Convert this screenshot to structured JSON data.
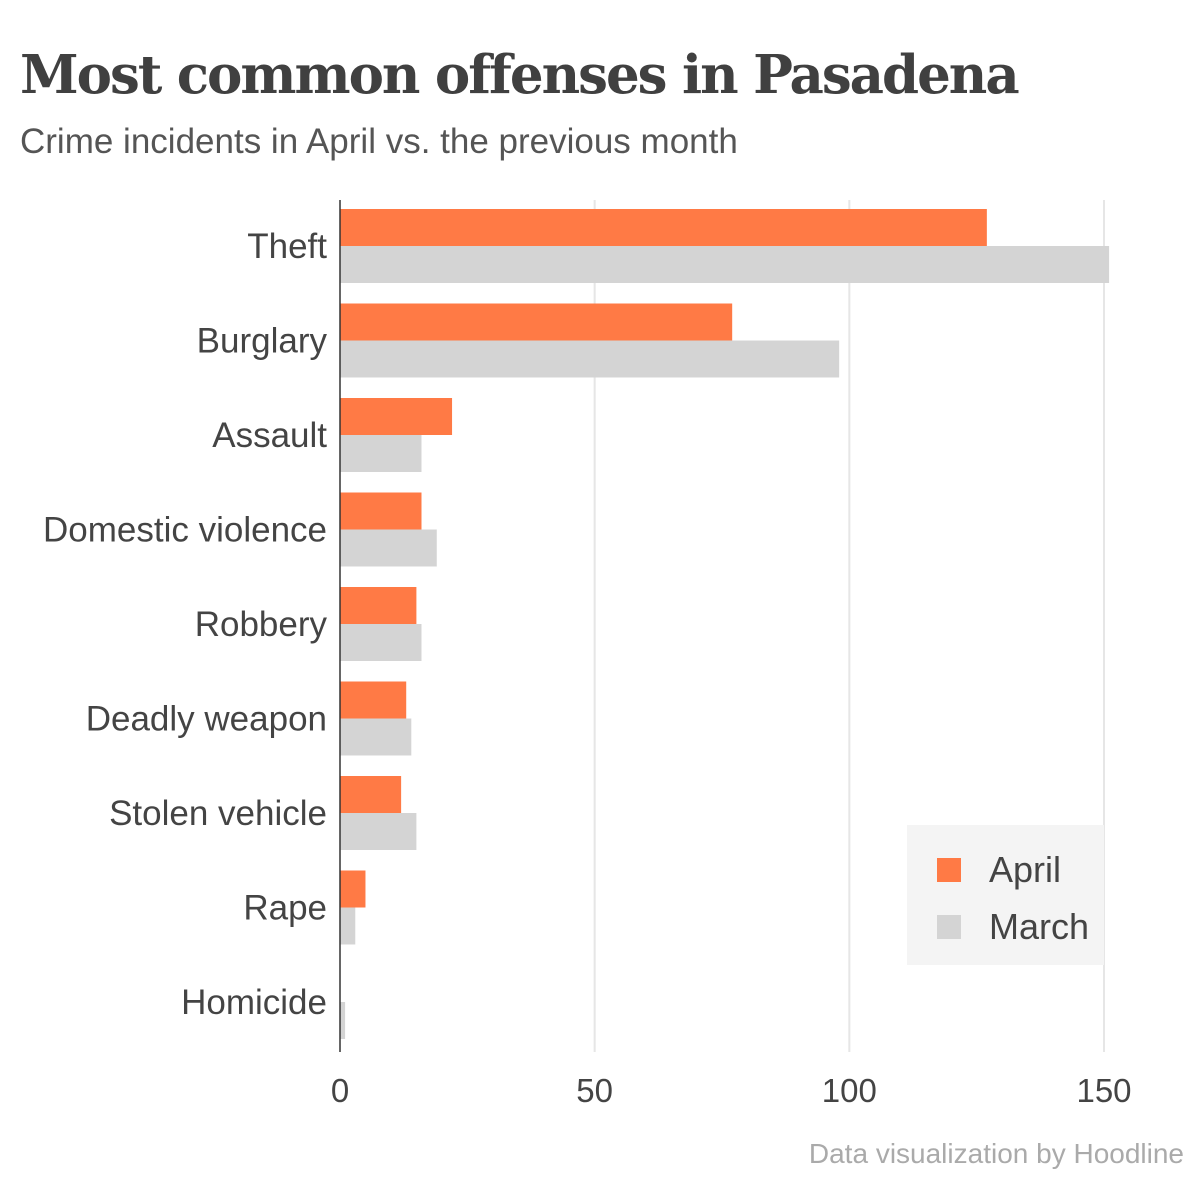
{
  "header": {
    "title": "Most common offenses in Pasadena",
    "subtitle": "Crime incidents in April vs. the previous month"
  },
  "credit": "Data visualization by Hoodline",
  "colors": {
    "april": "#ff7a45",
    "march": "#d4d4d4",
    "grid": "#e6e6e6",
    "axis": "#333333"
  },
  "chart_data": {
    "type": "bar",
    "orientation": "horizontal",
    "title": "Most common offenses in Pasadena",
    "subtitle": "Crime incidents in April vs. the previous month",
    "xlabel": "",
    "ylabel": "",
    "categories": [
      "Theft",
      "Burglary",
      "Assault",
      "Domestic violence",
      "Robbery",
      "Deadly weapon",
      "Stolen vehicle",
      "Rape",
      "Homicide"
    ],
    "series": [
      {
        "name": "April",
        "values": [
          127,
          77,
          22,
          16,
          15,
          13,
          12,
          5,
          0
        ]
      },
      {
        "name": "March",
        "values": [
          151,
          98,
          16,
          19,
          16,
          14,
          15,
          3,
          1
        ]
      }
    ],
    "xlim": [
      0,
      150
    ],
    "xticks": [
      "0",
      "50",
      "100",
      "150"
    ],
    "grid": true,
    "legend_position": "bottom-right"
  }
}
